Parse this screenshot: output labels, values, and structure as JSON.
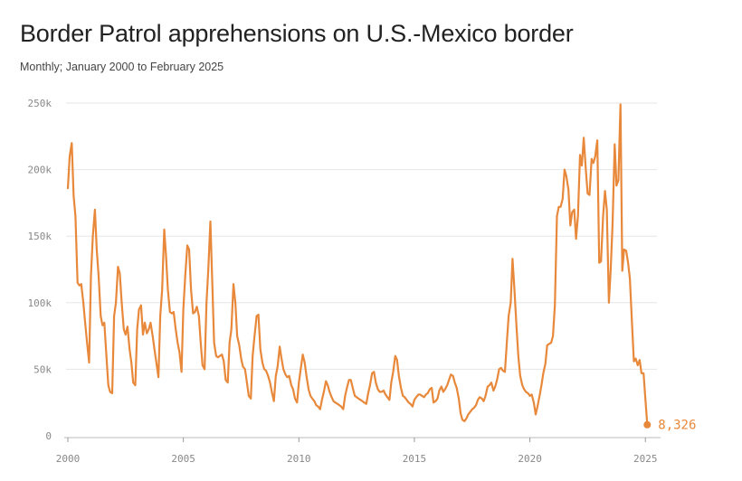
{
  "title": "Border Patrol apprehensions on U.S.-Mexico border",
  "subtitle": "Monthly; January 2000 to February 2025",
  "colors": {
    "line": "#e8883a",
    "grid": "#e6e6e6",
    "axis": "#888888"
  },
  "chart_data": {
    "type": "line",
    "title": "Border Patrol apprehensions on U.S.-Mexico border",
    "subtitle": "Monthly; January 2000 to February 2025",
    "xlabel": "",
    "ylabel": "",
    "xlim": [
      2000,
      2025.5
    ],
    "ylim": [
      0,
      250000
    ],
    "x_ticks": [
      2000,
      2005,
      2010,
      2015,
      2020,
      2025
    ],
    "x_tick_labels": [
      "2000",
      "2005",
      "2010",
      "2015",
      "2020",
      "2025"
    ],
    "y_ticks": [
      0,
      50000,
      100000,
      150000,
      200000,
      250000
    ],
    "y_tick_labels": [
      "0",
      "50k",
      "100k",
      "150k",
      "200k",
      "250k"
    ],
    "grid": "horizontal",
    "legend": "none",
    "end_label": "8,326",
    "series": [
      {
        "x": [
          2000.0,
          2000.08,
          2000.17,
          2000.25,
          2000.33,
          2000.42,
          2000.5,
          2000.58,
          2000.67,
          2000.75,
          2000.83,
          2000.92,
          2001.0,
          2001.08,
          2001.17,
          2001.25,
          2001.33,
          2001.42,
          2001.5,
          2001.58,
          2001.67,
          2001.75,
          2001.83,
          2001.92,
          2002.0,
          2002.08,
          2002.17,
          2002.25,
          2002.33,
          2002.42,
          2002.5,
          2002.58,
          2002.67,
          2002.75,
          2002.83,
          2002.92,
          2003.0,
          2003.08,
          2003.17,
          2003.25,
          2003.33,
          2003.42,
          2003.5,
          2003.58,
          2003.67,
          2003.75,
          2003.83,
          2003.92,
          2004.0,
          2004.08,
          2004.17,
          2004.25,
          2004.33,
          2004.42,
          2004.5,
          2004.58,
          2004.67,
          2004.75,
          2004.83,
          2004.92,
          2005.0,
          2005.08,
          2005.17,
          2005.25,
          2005.33,
          2005.42,
          2005.5,
          2005.58,
          2005.67,
          2005.75,
          2005.83,
          2005.92,
          2006.0,
          2006.08,
          2006.17,
          2006.25,
          2006.33,
          2006.42,
          2006.5,
          2006.58,
          2006.67,
          2006.75,
          2006.83,
          2006.92,
          2007.0,
          2007.08,
          2007.17,
          2007.25,
          2007.33,
          2007.42,
          2007.5,
          2007.58,
          2007.67,
          2007.75,
          2007.83,
          2007.92,
          2008.0,
          2008.08,
          2008.17,
          2008.25,
          2008.33,
          2008.42,
          2008.5,
          2008.58,
          2008.67,
          2008.75,
          2008.83,
          2008.92,
          2009.0,
          2009.08,
          2009.17,
          2009.25,
          2009.33,
          2009.42,
          2009.5,
          2009.58,
          2009.67,
          2009.75,
          2009.83,
          2009.92,
          2010.0,
          2010.08,
          2010.17,
          2010.25,
          2010.33,
          2010.42,
          2010.5,
          2010.58,
          2010.67,
          2010.75,
          2010.83,
          2010.92,
          2011.0,
          2011.08,
          2011.17,
          2011.25,
          2011.33,
          2011.42,
          2011.5,
          2011.58,
          2011.67,
          2011.75,
          2011.83,
          2011.92,
          2012.0,
          2012.08,
          2012.17,
          2012.25,
          2012.33,
          2012.42,
          2012.5,
          2012.58,
          2012.67,
          2012.75,
          2012.83,
          2012.92,
          2013.0,
          2013.08,
          2013.17,
          2013.25,
          2013.33,
          2013.42,
          2013.5,
          2013.58,
          2013.67,
          2013.75,
          2013.83,
          2013.92,
          2014.0,
          2014.08,
          2014.17,
          2014.25,
          2014.33,
          2014.42,
          2014.5,
          2014.58,
          2014.67,
          2014.75,
          2014.83,
          2014.92,
          2015.0,
          2015.08,
          2015.17,
          2015.25,
          2015.33,
          2015.42,
          2015.5,
          2015.58,
          2015.67,
          2015.75,
          2015.83,
          2015.92,
          2016.0,
          2016.08,
          2016.17,
          2016.25,
          2016.33,
          2016.42,
          2016.5,
          2016.58,
          2016.67,
          2016.75,
          2016.83,
          2016.92,
          2017.0,
          2017.08,
          2017.17,
          2017.25,
          2017.33,
          2017.42,
          2017.5,
          2017.58,
          2017.67,
          2017.75,
          2017.83,
          2017.92,
          2018.0,
          2018.08,
          2018.17,
          2018.25,
          2018.33,
          2018.42,
          2018.5,
          2018.58,
          2018.67,
          2018.75,
          2018.83,
          2018.92,
          2019.0,
          2019.08,
          2019.17,
          2019.25,
          2019.33,
          2019.42,
          2019.5,
          2019.58,
          2019.67,
          2019.75,
          2019.83,
          2019.92,
          2020.0,
          2020.08,
          2020.17,
          2020.25,
          2020.33,
          2020.42,
          2020.5,
          2020.58,
          2020.67,
          2020.75,
          2020.83,
          2020.92,
          2021.0,
          2021.08,
          2021.17,
          2021.25,
          2021.33,
          2021.42,
          2021.5,
          2021.58,
          2021.67,
          2021.75,
          2021.83,
          2021.92,
          2022.0,
          2022.08,
          2022.17,
          2022.25,
          2022.33,
          2022.42,
          2022.5,
          2022.58,
          2022.67,
          2022.75,
          2022.83,
          2022.92,
          2023.0,
          2023.08,
          2023.17,
          2023.25,
          2023.33,
          2023.42,
          2023.5,
          2023.58,
          2023.67,
          2023.75,
          2023.83,
          2023.92,
          2024.0,
          2024.08,
          2024.17,
          2024.25,
          2024.33,
          2024.42,
          2024.5,
          2024.58,
          2024.67,
          2024.75,
          2024.83,
          2024.92,
          2025.0,
          2025.08
        ],
        "y": [
          186000,
          210000,
          220000,
          180000,
          165000,
          115000,
          113000,
          114000,
          100000,
          85000,
          70000,
          55000,
          120000,
          150000,
          170000,
          140000,
          120000,
          90000,
          83000,
          85000,
          60000,
          38000,
          33000,
          32000,
          90000,
          100000,
          127000,
          122000,
          100000,
          80000,
          76000,
          82000,
          65000,
          55000,
          40000,
          38000,
          80000,
          95000,
          98000,
          76000,
          85000,
          77000,
          80000,
          85000,
          75000,
          65000,
          55000,
          44000,
          90000,
          110000,
          155000,
          135000,
          110000,
          93000,
          92000,
          93000,
          80000,
          70000,
          63000,
          48000,
          95000,
          120000,
          143000,
          140000,
          110000,
          92000,
          93000,
          97000,
          90000,
          70000,
          53000,
          50000,
          100000,
          125000,
          161000,
          115000,
          70000,
          60000,
          59000,
          60000,
          61000,
          56000,
          42000,
          40000,
          70000,
          80000,
          114000,
          100000,
          75000,
          68000,
          58000,
          52000,
          50000,
          40000,
          30000,
          28000,
          60000,
          75000,
          90000,
          91000,
          65000,
          55000,
          50000,
          49000,
          45000,
          40000,
          33000,
          26000,
          45000,
          52000,
          67000,
          58000,
          50000,
          46000,
          44000,
          45000,
          38000,
          35000,
          28000,
          25000,
          40000,
          50000,
          61000,
          55000,
          45000,
          35000,
          30000,
          28000,
          26000,
          23000,
          22000,
          20000,
          27000,
          33000,
          41000,
          38000,
          33000,
          29000,
          26000,
          25000,
          24000,
          23000,
          22000,
          20000,
          30000,
          36000,
          42000,
          42000,
          36000,
          30000,
          29000,
          28000,
          27000,
          26000,
          25000,
          24000,
          32000,
          38000,
          47000,
          48000,
          40000,
          35000,
          33000,
          33000,
          34000,
          31000,
          29000,
          27000,
          40000,
          48000,
          60000,
          57000,
          45000,
          36000,
          30000,
          29000,
          27000,
          25000,
          24000,
          22000,
          27000,
          29000,
          31000,
          31000,
          30000,
          29000,
          31000,
          32000,
          35000,
          36000,
          25000,
          26000,
          28000,
          34000,
          37000,
          33000,
          35000,
          38000,
          42000,
          46000,
          45000,
          40000,
          36000,
          28000,
          17000,
          12000,
          11000,
          13000,
          16000,
          18000,
          20000,
          21000,
          23000,
          27000,
          29000,
          28000,
          26000,
          30000,
          37000,
          38000,
          40000,
          34000,
          37000,
          42000,
          50000,
          51000,
          49000,
          48000,
          70000,
          90000,
          100000,
          133000,
          110000,
          82000,
          60000,
          45000,
          38000,
          35000,
          33000,
          32000,
          30000,
          31000,
          25000,
          16000,
          22000,
          30000,
          38000,
          47000,
          54000,
          68000,
          69000,
          70000,
          75000,
          98000,
          165000,
          172000,
          172000,
          178000,
          200000,
          195000,
          185000,
          158000,
          168000,
          170000,
          148000,
          165000,
          211000,
          203000,
          224000,
          200000,
          182000,
          181000,
          208000,
          205000,
          210000,
          222000,
          130000,
          131000,
          165000,
          184000,
          170000,
          100000,
          125000,
          160000,
          219000,
          188000,
          192000,
          249000,
          124000,
          140000,
          139000,
          130000,
          118000,
          85000,
          56000,
          58000,
          53000,
          57000,
          47000,
          47000,
          28000,
          8326
        ]
      }
    ]
  }
}
